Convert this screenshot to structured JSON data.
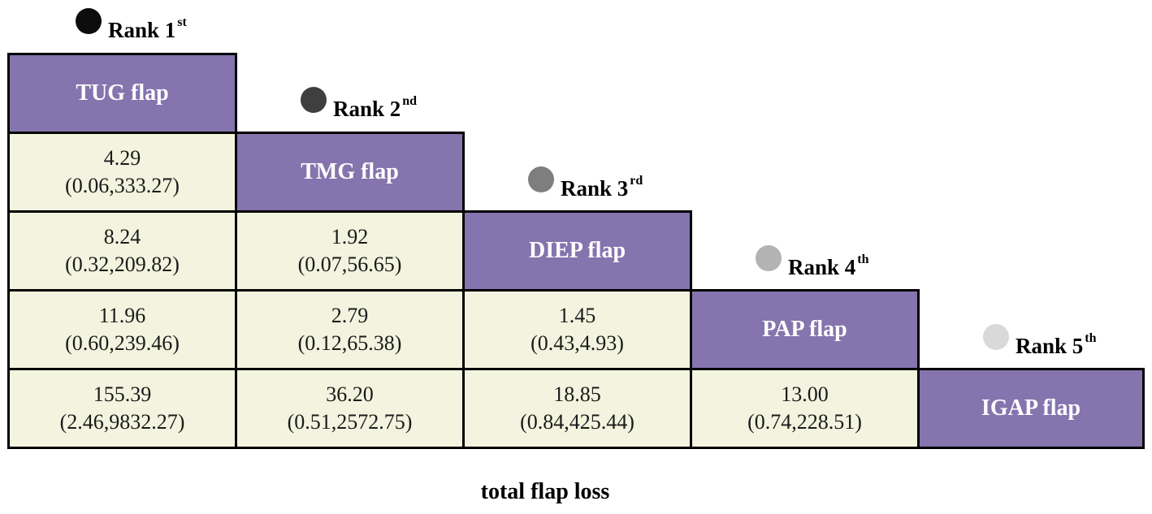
{
  "treatments": [
    {
      "label": "TUG flap",
      "rank_word": "Rank",
      "rank_num": "1",
      "rank_suffix": "st",
      "dot_color": "#0c0c0c"
    },
    {
      "label": "TMG flap",
      "rank_word": "Rank",
      "rank_num": "2",
      "rank_suffix": "nd",
      "dot_color": "#3f3f3f"
    },
    {
      "label": "DIEP flap",
      "rank_word": "Rank",
      "rank_num": "3",
      "rank_suffix": "rd",
      "dot_color": "#7e7e7e"
    },
    {
      "label": "PAP flap",
      "rank_word": "Rank",
      "rank_num": "4",
      "rank_suffix": "th",
      "dot_color": "#b3b3b3"
    },
    {
      "label": "IGAP flap",
      "rank_word": "Rank",
      "rank_num": "5",
      "rank_suffix": "th",
      "dot_color": "#d9d9d9"
    }
  ],
  "comparisons": [
    {
      "estimate": "4.29",
      "ci": "(0.06,333.27)"
    },
    {
      "estimate": "8.24",
      "ci": "(0.32,209.82)"
    },
    {
      "estimate": "1.92",
      "ci": "(0.07,56.65)"
    },
    {
      "estimate": "11.96",
      "ci": "(0.60,239.46)"
    },
    {
      "estimate": "2.79",
      "ci": "(0.12,65.38)"
    },
    {
      "estimate": "1.45",
      "ci": "(0.43,4.93)"
    },
    {
      "estimate": "155.39",
      "ci": "(2.46,9832.27)"
    },
    {
      "estimate": "36.20",
      "ci": "(0.51,2572.75)"
    },
    {
      "estimate": "18.85",
      "ci": "(0.84,425.44)"
    },
    {
      "estimate": "13.00",
      "ci": "(0.74,228.51)"
    }
  ],
  "colors": {
    "header_fill": "#8574ad",
    "value_fill": "#f3f4df",
    "border": "#000000"
  },
  "caption": "total flap loss"
}
